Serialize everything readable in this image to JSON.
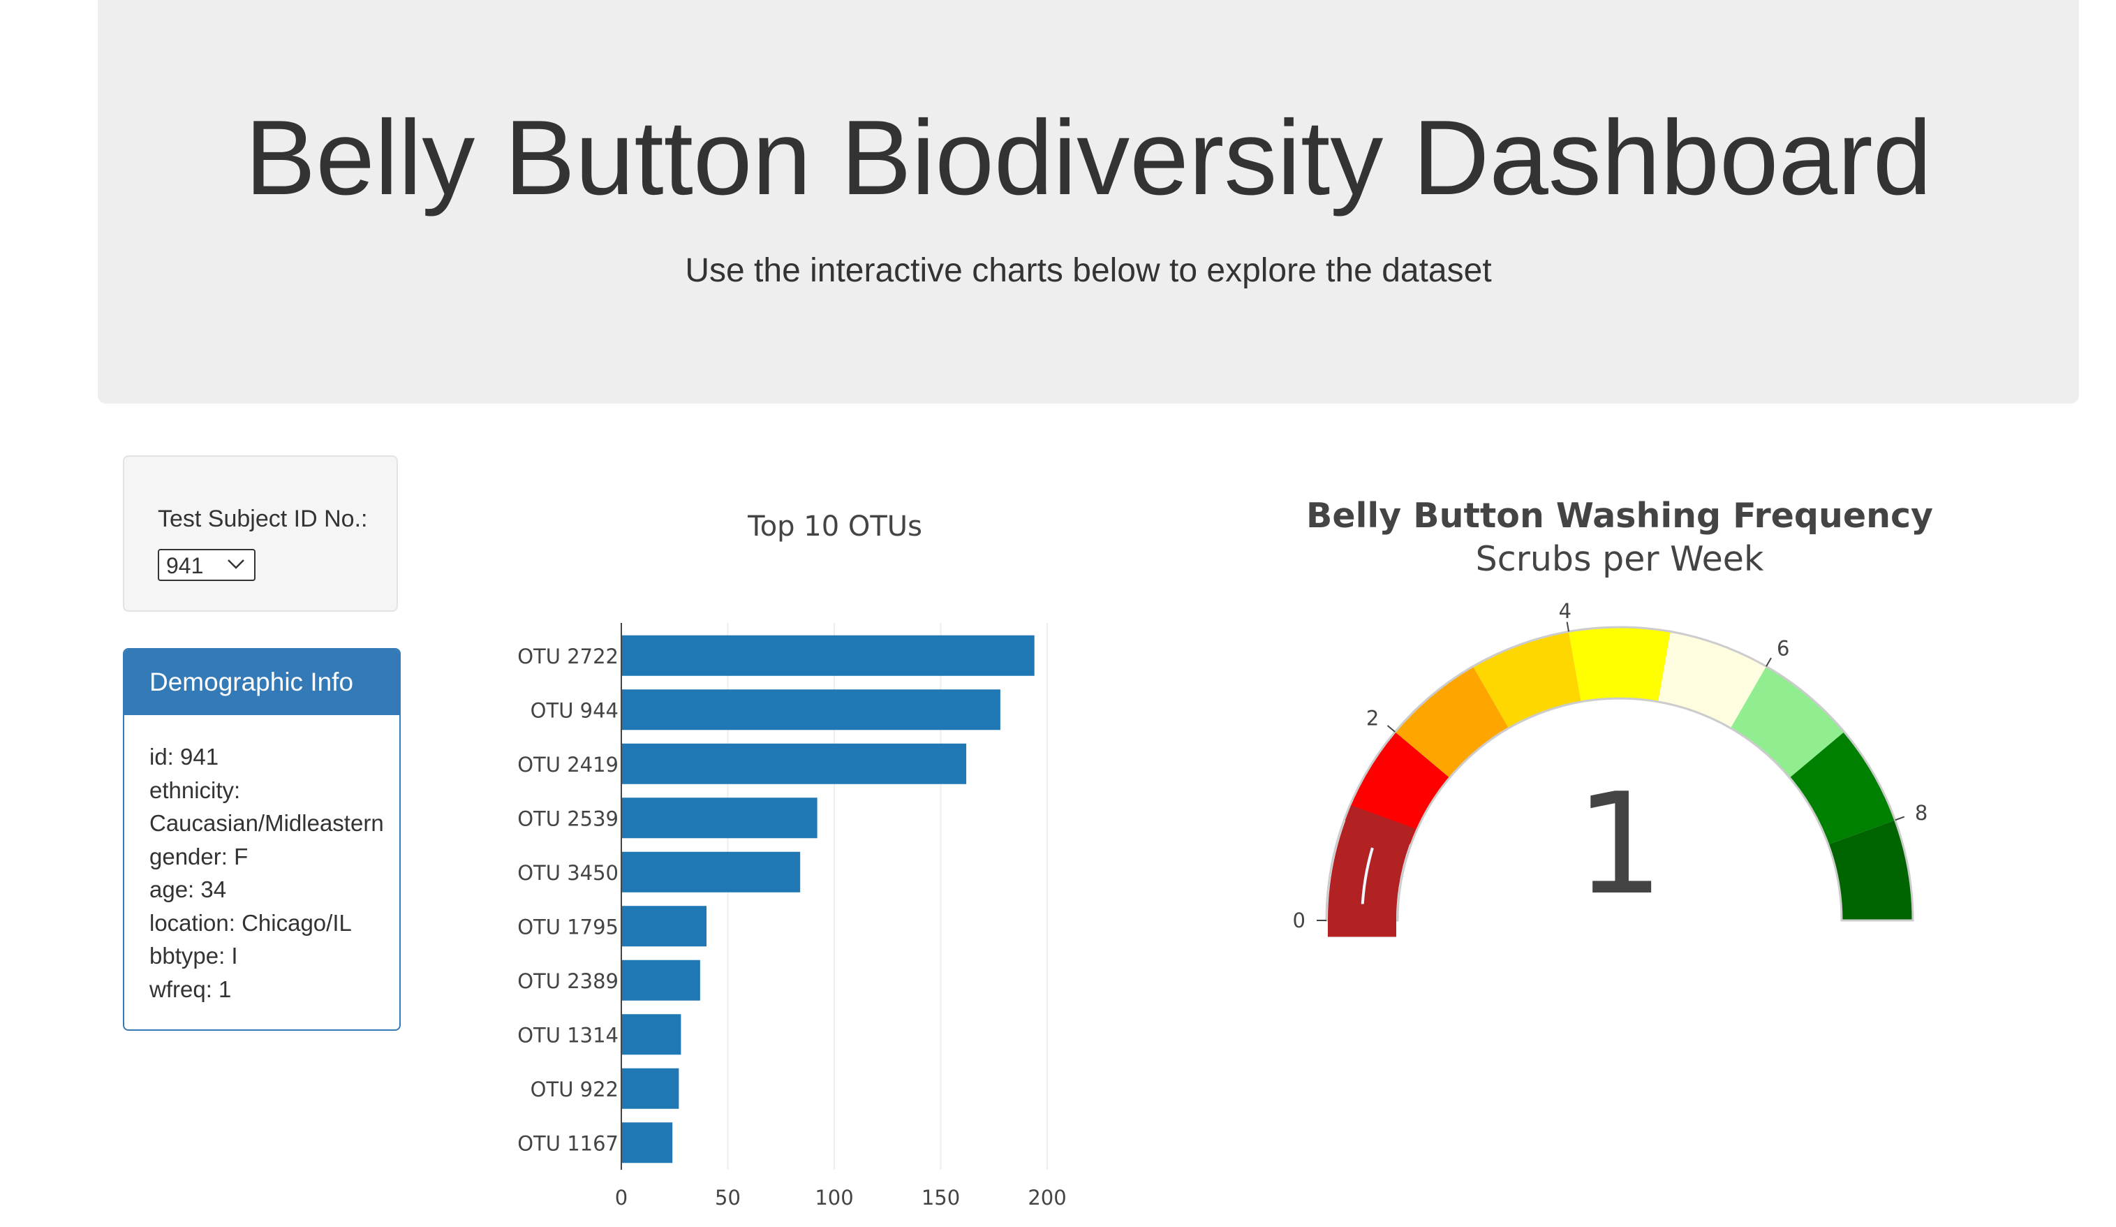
{
  "header": {
    "title": "Belly Button Biodiversity Dashboard",
    "subtitle": "Use the interactive charts below to explore the dataset"
  },
  "selector": {
    "label": "Test Subject ID No.:",
    "selected": "941"
  },
  "demographics": {
    "heading": "Demographic Info",
    "rows": [
      "id: 941",
      "ethnicity:",
      "Caucasian/Midleastern",
      "gender: F",
      "age: 34",
      "location: Chicago/IL",
      "bbtype: I",
      "wfreq: 1"
    ]
  },
  "chart_data": [
    {
      "type": "bar",
      "orientation": "horizontal",
      "title": "Top 10 OTUs",
      "categories": [
        "OTU 2722",
        "OTU 944",
        "OTU 2419",
        "OTU 2539",
        "OTU 3450",
        "OTU 1795",
        "OTU 2389",
        "OTU 1314",
        "OTU 922",
        "OTU 1167"
      ],
      "values": [
        194,
        178,
        162,
        92,
        84,
        40,
        37,
        28,
        27,
        24
      ],
      "xticks": [
        0,
        50,
        100,
        150,
        200
      ],
      "xlim": [
        0,
        200
      ],
      "grid": true,
      "bar_color": "#1f77b4"
    },
    {
      "type": "gauge",
      "title": "Belly Button Washing Frequency",
      "subtitle": "Scrubs per Week",
      "value": 1,
      "range": [
        0,
        9
      ],
      "ticks": [
        0,
        2,
        4,
        6,
        8
      ],
      "bar_color": "#b22222",
      "steps": [
        {
          "range": [
            0,
            1
          ],
          "color": "#f0f8ff"
        },
        {
          "range": [
            1,
            2
          ],
          "color": "#ff0000"
        },
        {
          "range": [
            2,
            3
          ],
          "color": "#ffa500"
        },
        {
          "range": [
            3,
            4
          ],
          "color": "#ffd700"
        },
        {
          "range": [
            4,
            5
          ],
          "color": "#ffff00"
        },
        {
          "range": [
            5,
            6
          ],
          "color": "#fffde0"
        },
        {
          "range": [
            6,
            7
          ],
          "color": "#90ee90"
        },
        {
          "range": [
            7,
            8
          ],
          "color": "#008000"
        },
        {
          "range": [
            8,
            9
          ],
          "color": "#006400"
        }
      ]
    }
  ]
}
